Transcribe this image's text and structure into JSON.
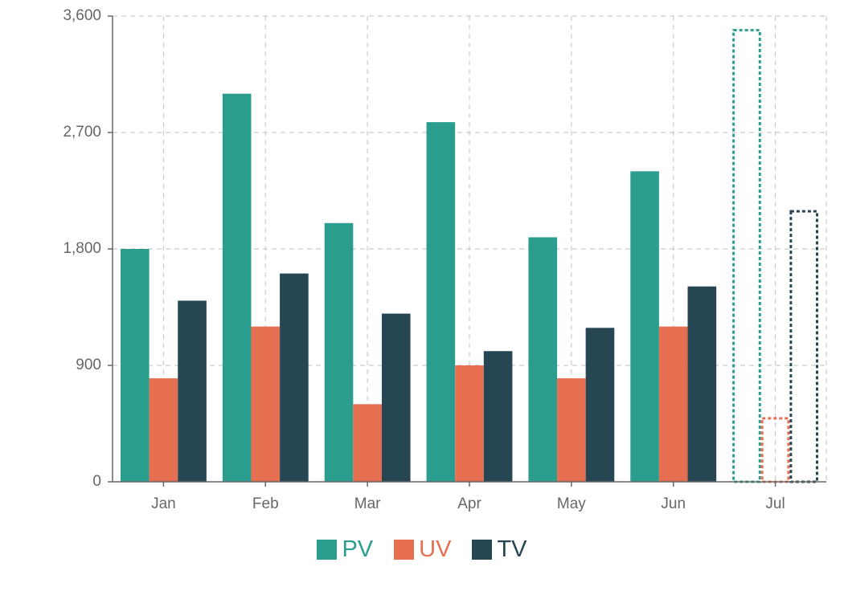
{
  "colors": {
    "PV": "#2a9d8f",
    "UV": "#e76f51",
    "TV": "#264653",
    "grid": "#cccccc",
    "axis": "#666666",
    "text": "#666666"
  },
  "chart_data": {
    "type": "bar",
    "categories": [
      "Jan",
      "Feb",
      "Mar",
      "Apr",
      "May",
      "Jun",
      "Jul"
    ],
    "series": [
      {
        "name": "PV",
        "values": [
          1800,
          3000,
          2000,
          2780,
          1890,
          2400,
          3500
        ]
      },
      {
        "name": "UV",
        "values": [
          800,
          1200,
          600,
          900,
          800,
          1200,
          500
        ]
      },
      {
        "name": "TV",
        "values": [
          1400,
          1610,
          1300,
          1010,
          1190,
          1510,
          2100
        ]
      }
    ],
    "dashed_outline_categories": [
      "Jul"
    ],
    "yticks": [
      0,
      900,
      1800,
      2700,
      3600
    ],
    "ytick_labels": [
      "0",
      "900",
      "1,800",
      "2,700",
      "3,600"
    ],
    "ylim": [
      0,
      3600
    ],
    "grid": true,
    "legend_position": "bottom"
  }
}
